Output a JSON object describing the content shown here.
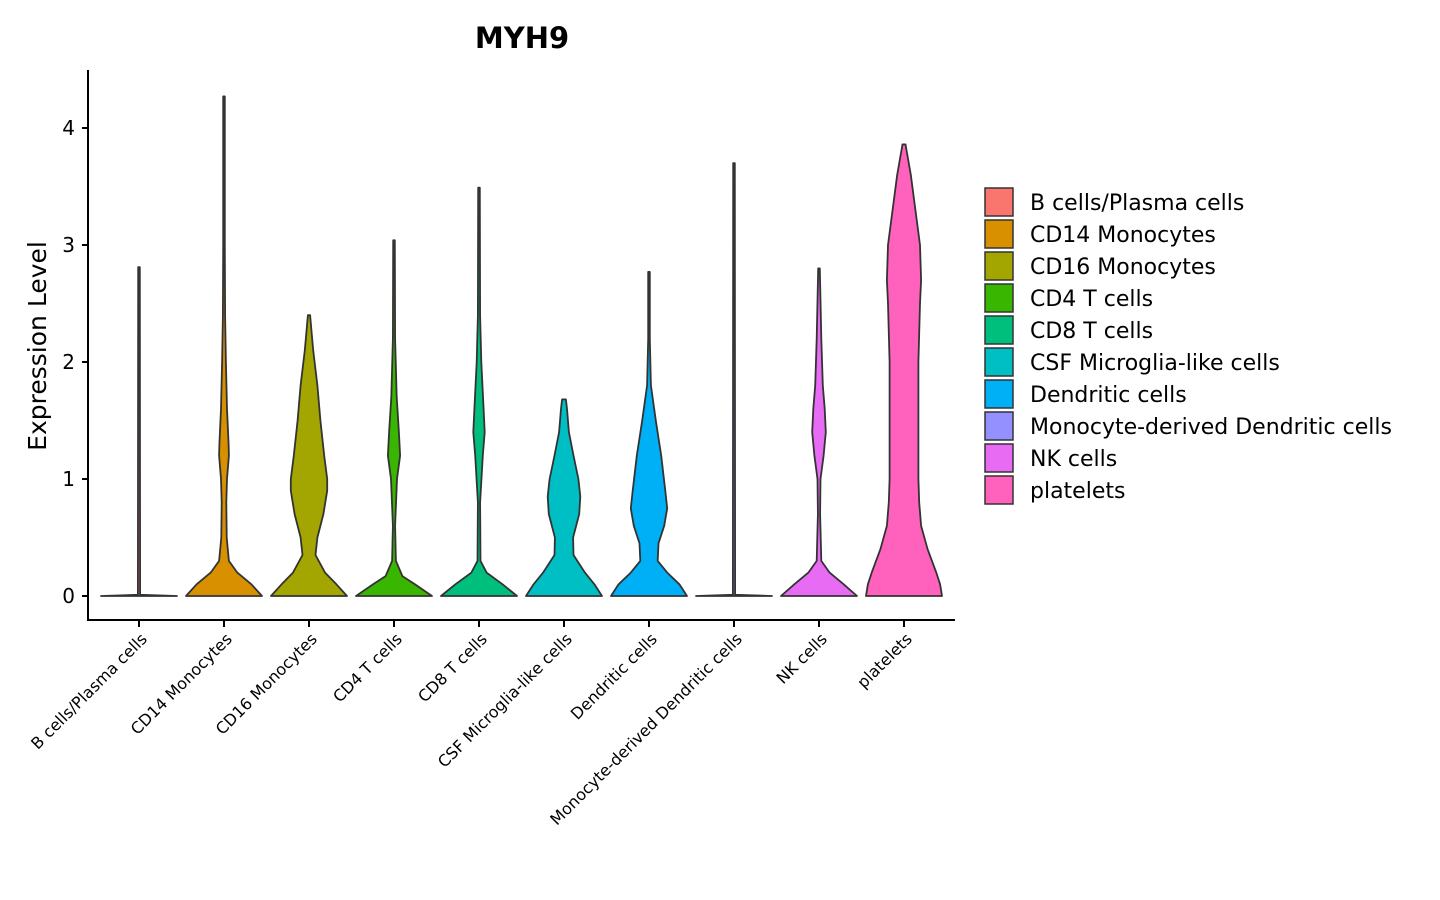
{
  "chart_data": {
    "type": "violin",
    "title": "MYH9",
    "xlabel": "",
    "ylabel": "Expression Level",
    "ylim": [
      -0.2,
      4.5
    ],
    "yticks": [
      0,
      1,
      2,
      3,
      4
    ],
    "categories": [
      "B cells/Plasma cells",
      "CD14 Monocytes",
      "CD16 Monocytes",
      "CD4 T cells",
      "CD8 T cells",
      "CSF Microglia-like cells",
      "Dendritic cells",
      "Monocyte-derived Dendritic cells",
      "NK cells",
      "platelets"
    ],
    "colors": [
      "#F8766D",
      "#D89000",
      "#A3A500",
      "#39B600",
      "#00BF7D",
      "#00BFC4",
      "#00B0F6",
      "#9590FF",
      "#E76BF3",
      "#FF62BC"
    ],
    "legend": {
      "position": "right",
      "entries": [
        "B cells/Plasma cells",
        "CD14 Monocytes",
        "CD16 Monocytes",
        "CD4 T cells",
        "CD8 T cells",
        "CSF Microglia-like cells",
        "Dendritic cells",
        "Monocyte-derived Dendritic cells",
        "NK cells",
        "platelets"
      ]
    },
    "series": [
      {
        "name": "B cells/Plasma cells",
        "max": 2.81,
        "density": [
          [
            0,
            1.0
          ],
          [
            0.01,
            0.03
          ],
          [
            2.81,
            0.02
          ]
        ]
      },
      {
        "name": "CD14 Monocytes",
        "max": 4.27,
        "density": [
          [
            0,
            1.0
          ],
          [
            0.1,
            0.72
          ],
          [
            0.2,
            0.35
          ],
          [
            0.3,
            0.13
          ],
          [
            0.5,
            0.07
          ],
          [
            0.8,
            0.06
          ],
          [
            1.0,
            0.08
          ],
          [
            1.2,
            0.13
          ],
          [
            1.3,
            0.12
          ],
          [
            1.6,
            0.08
          ],
          [
            2.0,
            0.05
          ],
          [
            2.4,
            0.03
          ],
          [
            3.0,
            0.02
          ],
          [
            4.27,
            0.02
          ]
        ]
      },
      {
        "name": "CD16 Monocytes",
        "max": 2.4,
        "density": [
          [
            0,
            1.0
          ],
          [
            0.1,
            0.72
          ],
          [
            0.2,
            0.42
          ],
          [
            0.35,
            0.17
          ],
          [
            0.5,
            0.22
          ],
          [
            0.7,
            0.38
          ],
          [
            0.9,
            0.48
          ],
          [
            1.0,
            0.48
          ],
          [
            1.2,
            0.4
          ],
          [
            1.5,
            0.3
          ],
          [
            1.8,
            0.22
          ],
          [
            2.1,
            0.11
          ],
          [
            2.4,
            0.03
          ]
        ]
      },
      {
        "name": "CD4 T cells",
        "max": 3.04,
        "density": [
          [
            0,
            1.0
          ],
          [
            0.1,
            0.55
          ],
          [
            0.17,
            0.22
          ],
          [
            0.3,
            0.05
          ],
          [
            0.6,
            0.03
          ],
          [
            1.0,
            0.08
          ],
          [
            1.2,
            0.16
          ],
          [
            1.4,
            0.13
          ],
          [
            1.7,
            0.07
          ],
          [
            2.2,
            0.03
          ],
          [
            3.04,
            0.02
          ]
        ]
      },
      {
        "name": "CD8 T cells",
        "max": 3.49,
        "density": [
          [
            0,
            1.0
          ],
          [
            0.1,
            0.62
          ],
          [
            0.2,
            0.2
          ],
          [
            0.3,
            0.04
          ],
          [
            0.8,
            0.03
          ],
          [
            1.2,
            0.1
          ],
          [
            1.4,
            0.15
          ],
          [
            1.6,
            0.12
          ],
          [
            2.0,
            0.06
          ],
          [
            2.4,
            0.03
          ],
          [
            3.49,
            0.02
          ]
        ]
      },
      {
        "name": "CSF Microglia-like cells",
        "max": 1.68,
        "density": [
          [
            0,
            1.0
          ],
          [
            0.1,
            0.8
          ],
          [
            0.2,
            0.55
          ],
          [
            0.35,
            0.25
          ],
          [
            0.5,
            0.24
          ],
          [
            0.7,
            0.4
          ],
          [
            0.85,
            0.43
          ],
          [
            1.0,
            0.38
          ],
          [
            1.2,
            0.25
          ],
          [
            1.4,
            0.13
          ],
          [
            1.6,
            0.08
          ],
          [
            1.68,
            0.05
          ]
        ]
      },
      {
        "name": "Dendritic cells",
        "max": 2.77,
        "density": [
          [
            0,
            1.0
          ],
          [
            0.1,
            0.8
          ],
          [
            0.2,
            0.48
          ],
          [
            0.3,
            0.23
          ],
          [
            0.45,
            0.25
          ],
          [
            0.6,
            0.4
          ],
          [
            0.75,
            0.48
          ],
          [
            0.9,
            0.43
          ],
          [
            1.2,
            0.32
          ],
          [
            1.5,
            0.18
          ],
          [
            1.8,
            0.05
          ],
          [
            2.2,
            0.02
          ],
          [
            2.77,
            0.02
          ]
        ]
      },
      {
        "name": "Monocyte-derived Dendritic cells",
        "max": 3.7,
        "density": [
          [
            0,
            1.0
          ],
          [
            0.01,
            0.03
          ],
          [
            3.7,
            0.02
          ]
        ]
      },
      {
        "name": "NK cells",
        "max": 2.8,
        "density": [
          [
            0,
            1.0
          ],
          [
            0.1,
            0.65
          ],
          [
            0.2,
            0.28
          ],
          [
            0.3,
            0.06
          ],
          [
            0.7,
            0.03
          ],
          [
            1.0,
            0.04
          ],
          [
            1.2,
            0.12
          ],
          [
            1.4,
            0.18
          ],
          [
            1.6,
            0.15
          ],
          [
            1.8,
            0.1
          ],
          [
            2.2,
            0.06
          ],
          [
            2.8,
            0.02
          ]
        ]
      },
      {
        "name": "platelets",
        "max": 3.86,
        "density": [
          [
            0,
            1.0
          ],
          [
            0.1,
            0.95
          ],
          [
            0.2,
            0.85
          ],
          [
            0.4,
            0.62
          ],
          [
            0.6,
            0.45
          ],
          [
            0.8,
            0.4
          ],
          [
            1.0,
            0.38
          ],
          [
            1.5,
            0.38
          ],
          [
            2.0,
            0.38
          ],
          [
            2.5,
            0.42
          ],
          [
            2.7,
            0.45
          ],
          [
            3.0,
            0.42
          ],
          [
            3.3,
            0.3
          ],
          [
            3.6,
            0.18
          ],
          [
            3.86,
            0.04
          ]
        ]
      }
    ]
  }
}
